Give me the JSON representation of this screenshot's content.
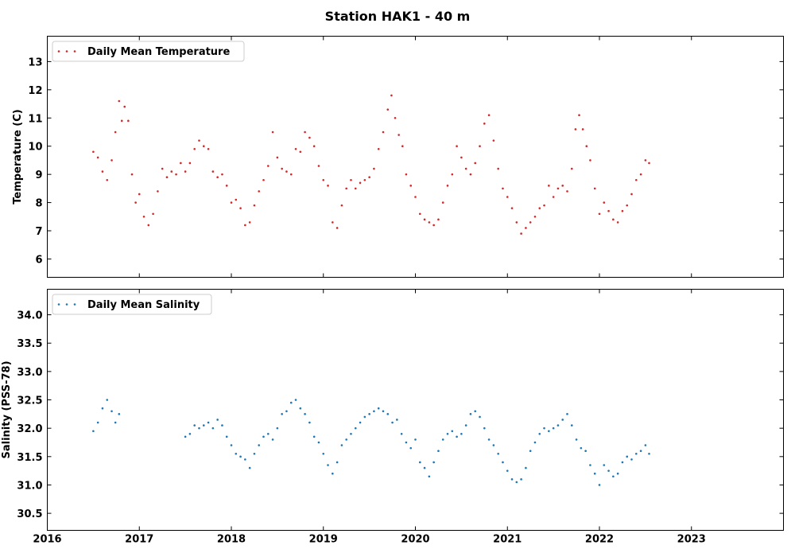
{
  "figure": {
    "title": "Station HAK1 - 40 m"
  },
  "chart_data": [
    {
      "type": "scatter",
      "ylabel": "Temperature (C)",
      "xlim": [
        2016.0,
        2024.0
      ],
      "ylim": [
        5.35,
        13.9
      ],
      "xticks": [
        2017,
        2018,
        2019,
        2020,
        2021,
        2022,
        2023
      ],
      "xtick_labels_shown": false,
      "yticks": [
        6,
        7,
        8,
        9,
        10,
        11,
        12,
        13
      ],
      "ytick_labels": [
        "6",
        "7",
        "8",
        "9",
        "10",
        "11",
        "12",
        "13"
      ],
      "legend_position": "upper-left",
      "grid": false,
      "series": [
        {
          "name": "Daily Mean Temperature",
          "color": "#d62728",
          "x_range": [
            2016.5,
            2022.54
          ],
          "marker": "small-dot",
          "points": [
            [
              2016.5,
              9.8
            ],
            [
              2016.55,
              9.6
            ],
            [
              2016.6,
              9.1
            ],
            [
              2016.65,
              8.8
            ],
            [
              2016.7,
              9.5
            ],
            [
              2016.74,
              10.5
            ],
            [
              2016.78,
              11.6
            ],
            [
              2016.81,
              10.9
            ],
            [
              2016.84,
              11.4
            ],
            [
              2016.88,
              10.9
            ],
            [
              2016.92,
              9.0
            ],
            [
              2016.96,
              8.0
            ],
            [
              2017.0,
              8.3
            ],
            [
              2017.05,
              7.5
            ],
            [
              2017.1,
              7.2
            ],
            [
              2017.15,
              7.6
            ],
            [
              2017.2,
              8.4
            ],
            [
              2017.25,
              9.2
            ],
            [
              2017.3,
              8.9
            ],
            [
              2017.35,
              9.1
            ],
            [
              2017.4,
              9.0
            ],
            [
              2017.45,
              9.4
            ],
            [
              2017.5,
              9.1
            ],
            [
              2017.55,
              9.4
            ],
            [
              2017.6,
              9.9
            ],
            [
              2017.65,
              10.2
            ],
            [
              2017.7,
              10.0
            ],
            [
              2017.75,
              9.9
            ],
            [
              2017.8,
              9.1
            ],
            [
              2017.85,
              8.9
            ],
            [
              2017.9,
              9.0
            ],
            [
              2017.95,
              8.6
            ],
            [
              2018.0,
              8.0
            ],
            [
              2018.05,
              8.1
            ],
            [
              2018.1,
              7.8
            ],
            [
              2018.15,
              7.2
            ],
            [
              2018.2,
              7.3
            ],
            [
              2018.25,
              7.9
            ],
            [
              2018.3,
              8.4
            ],
            [
              2018.35,
              8.8
            ],
            [
              2018.4,
              9.3
            ],
            [
              2018.45,
              10.5
            ],
            [
              2018.5,
              9.6
            ],
            [
              2018.55,
              9.2
            ],
            [
              2018.6,
              9.1
            ],
            [
              2018.65,
              9.0
            ],
            [
              2018.7,
              9.9
            ],
            [
              2018.75,
              9.8
            ],
            [
              2018.8,
              10.5
            ],
            [
              2018.85,
              10.3
            ],
            [
              2018.9,
              10.0
            ],
            [
              2018.95,
              9.3
            ],
            [
              2019.0,
              8.8
            ],
            [
              2019.05,
              8.6
            ],
            [
              2019.1,
              7.3
            ],
            [
              2019.15,
              7.1
            ],
            [
              2019.2,
              7.9
            ],
            [
              2019.25,
              8.5
            ],
            [
              2019.3,
              8.8
            ],
            [
              2019.35,
              8.5
            ],
            [
              2019.4,
              8.7
            ],
            [
              2019.45,
              8.8
            ],
            [
              2019.5,
              8.9
            ],
            [
              2019.55,
              9.2
            ],
            [
              2019.6,
              9.9
            ],
            [
              2019.65,
              10.5
            ],
            [
              2019.7,
              11.3
            ],
            [
              2019.74,
              11.8
            ],
            [
              2019.78,
              11.0
            ],
            [
              2019.82,
              10.4
            ],
            [
              2019.86,
              10.0
            ],
            [
              2019.9,
              9.0
            ],
            [
              2019.95,
              8.6
            ],
            [
              2020.0,
              8.2
            ],
            [
              2020.05,
              7.6
            ],
            [
              2020.1,
              7.4
            ],
            [
              2020.15,
              7.3
            ],
            [
              2020.2,
              7.2
            ],
            [
              2020.25,
              7.4
            ],
            [
              2020.3,
              8.0
            ],
            [
              2020.35,
              8.6
            ],
            [
              2020.4,
              9.0
            ],
            [
              2020.45,
              10.0
            ],
            [
              2020.5,
              9.6
            ],
            [
              2020.55,
              9.2
            ],
            [
              2020.6,
              9.0
            ],
            [
              2020.65,
              9.4
            ],
            [
              2020.7,
              10.0
            ],
            [
              2020.75,
              10.8
            ],
            [
              2020.8,
              11.1
            ],
            [
              2020.85,
              10.2
            ],
            [
              2020.9,
              9.2
            ],
            [
              2020.95,
              8.5
            ],
            [
              2021.0,
              8.2
            ],
            [
              2021.05,
              7.8
            ],
            [
              2021.1,
              7.3
            ],
            [
              2021.15,
              6.9
            ],
            [
              2021.2,
              7.1
            ],
            [
              2021.25,
              7.3
            ],
            [
              2021.3,
              7.5
            ],
            [
              2021.35,
              7.8
            ],
            [
              2021.4,
              7.9
            ],
            [
              2021.45,
              8.6
            ],
            [
              2021.5,
              8.2
            ],
            [
              2021.55,
              8.5
            ],
            [
              2021.6,
              8.6
            ],
            [
              2021.65,
              8.4
            ],
            [
              2021.7,
              9.2
            ],
            [
              2021.74,
              10.6
            ],
            [
              2021.78,
              11.1
            ],
            [
              2021.82,
              10.6
            ],
            [
              2021.86,
              10.0
            ],
            [
              2021.9,
              9.5
            ],
            [
              2021.95,
              8.5
            ],
            [
              2022.0,
              7.6
            ],
            [
              2022.05,
              8.0
            ],
            [
              2022.1,
              7.7
            ],
            [
              2022.15,
              7.4
            ],
            [
              2022.2,
              7.3
            ],
            [
              2022.25,
              7.7
            ],
            [
              2022.3,
              7.9
            ],
            [
              2022.35,
              8.3
            ],
            [
              2022.4,
              8.8
            ],
            [
              2022.45,
              9.0
            ],
            [
              2022.5,
              9.5
            ],
            [
              2022.54,
              9.4
            ]
          ]
        }
      ]
    },
    {
      "type": "scatter",
      "ylabel": "Salinity (PSS-78)",
      "xlim": [
        2016.0,
        2024.0
      ],
      "ylim": [
        30.2,
        34.45
      ],
      "xticks": [
        2016,
        2017,
        2018,
        2019,
        2020,
        2021,
        2022,
        2023
      ],
      "xtick_labels": [
        "2016",
        "2017",
        "2018",
        "2019",
        "2020",
        "2021",
        "2022",
        "2023"
      ],
      "yticks": [
        30.5,
        31.0,
        31.5,
        32.0,
        32.5,
        33.0,
        33.5,
        34.0
      ],
      "ytick_labels": [
        "30.5",
        "31.0",
        "31.5",
        "32.0",
        "32.5",
        "33.0",
        "33.5",
        "34.0"
      ],
      "legend_position": "upper-left",
      "grid": false,
      "series": [
        {
          "name": "Daily Mean Salinity",
          "color": "#1f77b4",
          "x_ranges": [
            [
              2016.5,
              2016.78
            ],
            [
              2017.5,
              2022.54
            ]
          ],
          "marker": "small-dot",
          "points": [
            [
              2016.5,
              31.95
            ],
            [
              2016.55,
              32.1
            ],
            [
              2016.6,
              32.35
            ],
            [
              2016.65,
              32.5
            ],
            [
              2016.7,
              32.3
            ],
            [
              2016.74,
              32.1
            ],
            [
              2016.78,
              32.25
            ],
            [
              2017.5,
              31.85
            ],
            [
              2017.55,
              31.9
            ],
            [
              2017.6,
              32.05
            ],
            [
              2017.65,
              32.0
            ],
            [
              2017.7,
              32.05
            ],
            [
              2017.75,
              32.1
            ],
            [
              2017.8,
              32.0
            ],
            [
              2017.85,
              32.15
            ],
            [
              2017.9,
              32.05
            ],
            [
              2017.95,
              31.85
            ],
            [
              2018.0,
              31.7
            ],
            [
              2018.05,
              31.55
            ],
            [
              2018.1,
              31.5
            ],
            [
              2018.15,
              31.45
            ],
            [
              2018.2,
              31.3
            ],
            [
              2018.25,
              31.55
            ],
            [
              2018.3,
              31.7
            ],
            [
              2018.35,
              31.85
            ],
            [
              2018.4,
              31.9
            ],
            [
              2018.45,
              31.8
            ],
            [
              2018.5,
              32.0
            ],
            [
              2018.55,
              32.25
            ],
            [
              2018.6,
              32.3
            ],
            [
              2018.65,
              32.45
            ],
            [
              2018.7,
              32.5
            ],
            [
              2018.75,
              32.35
            ],
            [
              2018.8,
              32.25
            ],
            [
              2018.85,
              32.1
            ],
            [
              2018.9,
              31.85
            ],
            [
              2018.95,
              31.75
            ],
            [
              2019.0,
              31.55
            ],
            [
              2019.05,
              31.35
            ],
            [
              2019.1,
              31.2
            ],
            [
              2019.15,
              31.4
            ],
            [
              2019.2,
              31.7
            ],
            [
              2019.25,
              31.8
            ],
            [
              2019.3,
              31.9
            ],
            [
              2019.35,
              32.0
            ],
            [
              2019.4,
              32.1
            ],
            [
              2019.45,
              32.2
            ],
            [
              2019.5,
              32.25
            ],
            [
              2019.55,
              32.3
            ],
            [
              2019.6,
              32.35
            ],
            [
              2019.65,
              32.3
            ],
            [
              2019.7,
              32.25
            ],
            [
              2019.75,
              32.1
            ],
            [
              2019.8,
              32.15
            ],
            [
              2019.85,
              31.9
            ],
            [
              2019.9,
              31.75
            ],
            [
              2019.95,
              31.65
            ],
            [
              2020.0,
              31.8
            ],
            [
              2020.05,
              31.4
            ],
            [
              2020.1,
              31.3
            ],
            [
              2020.15,
              31.15
            ],
            [
              2020.2,
              31.4
            ],
            [
              2020.25,
              31.6
            ],
            [
              2020.3,
              31.8
            ],
            [
              2020.35,
              31.9
            ],
            [
              2020.4,
              31.95
            ],
            [
              2020.45,
              31.85
            ],
            [
              2020.5,
              31.9
            ],
            [
              2020.55,
              32.05
            ],
            [
              2020.6,
              32.25
            ],
            [
              2020.65,
              32.3
            ],
            [
              2020.7,
              32.2
            ],
            [
              2020.75,
              32.0
            ],
            [
              2020.8,
              31.8
            ],
            [
              2020.85,
              31.7
            ],
            [
              2020.9,
              31.55
            ],
            [
              2020.95,
              31.4
            ],
            [
              2021.0,
              31.25
            ],
            [
              2021.05,
              31.1
            ],
            [
              2021.1,
              31.05
            ],
            [
              2021.15,
              31.1
            ],
            [
              2021.2,
              31.3
            ],
            [
              2021.25,
              31.6
            ],
            [
              2021.3,
              31.75
            ],
            [
              2021.35,
              31.9
            ],
            [
              2021.4,
              32.0
            ],
            [
              2021.45,
              31.95
            ],
            [
              2021.5,
              32.0
            ],
            [
              2021.55,
              32.05
            ],
            [
              2021.6,
              32.15
            ],
            [
              2021.65,
              32.25
            ],
            [
              2021.7,
              32.05
            ],
            [
              2021.75,
              31.8
            ],
            [
              2021.8,
              31.65
            ],
            [
              2021.85,
              31.6
            ],
            [
              2021.9,
              31.35
            ],
            [
              2021.95,
              31.2
            ],
            [
              2022.0,
              31.0
            ],
            [
              2022.05,
              31.35
            ],
            [
              2022.1,
              31.25
            ],
            [
              2022.15,
              31.15
            ],
            [
              2022.2,
              31.2
            ],
            [
              2022.25,
              31.4
            ],
            [
              2022.3,
              31.5
            ],
            [
              2022.35,
              31.45
            ],
            [
              2022.4,
              31.55
            ],
            [
              2022.45,
              31.6
            ],
            [
              2022.5,
              31.7
            ],
            [
              2022.54,
              31.55
            ]
          ]
        }
      ]
    }
  ]
}
